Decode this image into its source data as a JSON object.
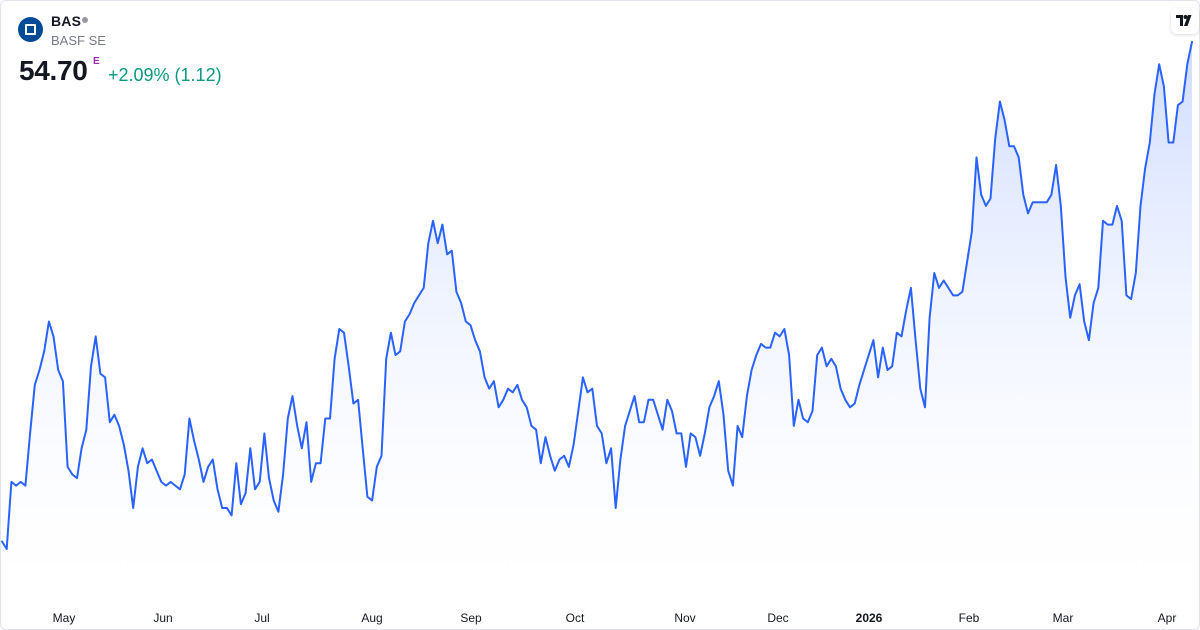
{
  "header": {
    "symbol": "BAS",
    "company": "BASF SE",
    "price": "54.70",
    "price_flag": "E",
    "change": "+2.09% (1.12)"
  },
  "colors": {
    "line": "#2962ff",
    "fill_top": "#c7d6ff",
    "positive": "#089981",
    "logo": "#004a96",
    "flag": "#9c27b0"
  },
  "icons": {
    "logo": "basf-logo-icon",
    "brand": "tradingview-logo-icon",
    "status": "market-status-dot-icon"
  },
  "chart_data": {
    "type": "area",
    "title": "",
    "xlabel": "",
    "ylabel": "",
    "grid": false,
    "x_axis_labels": [
      "May",
      "Jun",
      "Jul",
      "Aug",
      "Sep",
      "Oct",
      "Nov",
      "Dec",
      "2026",
      "Feb",
      "Mar",
      "Apr"
    ],
    "ylim": [
      40.0,
      55.5
    ],
    "series": [
      {
        "values": [
          41.3,
          41.1,
          42.9,
          42.8,
          42.9,
          42.8,
          44.2,
          45.5,
          45.9,
          46.4,
          47.2,
          46.8,
          45.9,
          45.6,
          43.3,
          43.1,
          43.0,
          43.8,
          44.3,
          46.0,
          46.8,
          45.8,
          45.7,
          44.5,
          44.7,
          44.4,
          43.9,
          43.2,
          42.2,
          43.3,
          43.8,
          43.4,
          43.5,
          43.2,
          42.9,
          42.8,
          42.9,
          42.8,
          42.7,
          43.1,
          44.6,
          44.0,
          43.5,
          42.9,
          43.3,
          43.5,
          42.7,
          42.2,
          42.2,
          42.0,
          43.4,
          42.3,
          42.6,
          43.8,
          42.7,
          42.9,
          44.2,
          43.0,
          42.4,
          42.1,
          43.1,
          44.6,
          45.2,
          44.4,
          43.8,
          44.5,
          42.9,
          43.4,
          43.4,
          44.6,
          44.6,
          46.2,
          47.0,
          46.9,
          46.0,
          45.0,
          45.1,
          43.8,
          42.5,
          42.4,
          43.3,
          43.6,
          46.2,
          46.9,
          46.3,
          46.4,
          47.2,
          47.4,
          47.7,
          47.9,
          48.1,
          49.3,
          49.9,
          49.3,
          49.8,
          49.0,
          49.1,
          48.0,
          47.7,
          47.2,
          47.1,
          46.7,
          46.4,
          45.7,
          45.4,
          45.6,
          44.9,
          45.1,
          45.4,
          45.3,
          45.5,
          45.1,
          44.9,
          44.4,
          44.3,
          43.4,
          44.1,
          43.6,
          43.2,
          43.5,
          43.6,
          43.3,
          43.9,
          44.8,
          45.7,
          45.3,
          45.4,
          44.4,
          44.2,
          43.4,
          43.8,
          42.2,
          43.5,
          44.4,
          44.8,
          45.2,
          44.5,
          44.5,
          45.1,
          45.1,
          44.7,
          44.3,
          45.1,
          44.8,
          44.2,
          44.2,
          43.3,
          44.2,
          44.1,
          43.6,
          44.2,
          44.9,
          45.2,
          45.6,
          44.7,
          43.2,
          42.8,
          44.4,
          44.1,
          45.2,
          45.9,
          46.3,
          46.6,
          46.5,
          46.5,
          46.9,
          46.8,
          47.0,
          46.3,
          44.4,
          45.1,
          44.6,
          44.5,
          44.8,
          46.3,
          46.5,
          46.0,
          46.2,
          46.0,
          45.4,
          45.1,
          44.9,
          45.0,
          45.5,
          45.9,
          46.3,
          46.7,
          45.7,
          46.5,
          45.9,
          46.0,
          46.9,
          46.8,
          47.5,
          48.1,
          46.7,
          45.4,
          44.9,
          47.3,
          48.5,
          48.1,
          48.3,
          48.1,
          47.9,
          47.9,
          48.0,
          48.8,
          49.6,
          51.6,
          50.6,
          50.3,
          50.5,
          52.1,
          53.1,
          52.6,
          51.9,
          51.9,
          51.6,
          50.6,
          50.1,
          50.4,
          50.4,
          50.4,
          50.4,
          50.6,
          51.4,
          50.3,
          48.4,
          47.3,
          47.9,
          48.2,
          47.2,
          46.7,
          47.7,
          48.1,
          49.9,
          49.8,
          49.8,
          50.3,
          49.9,
          47.9,
          47.8,
          48.5,
          50.3,
          51.3,
          52.0,
          53.3,
          54.1,
          53.5,
          52.0,
          52.0,
          53.0,
          53.1,
          54.1,
          54.7
        ]
      }
    ]
  }
}
